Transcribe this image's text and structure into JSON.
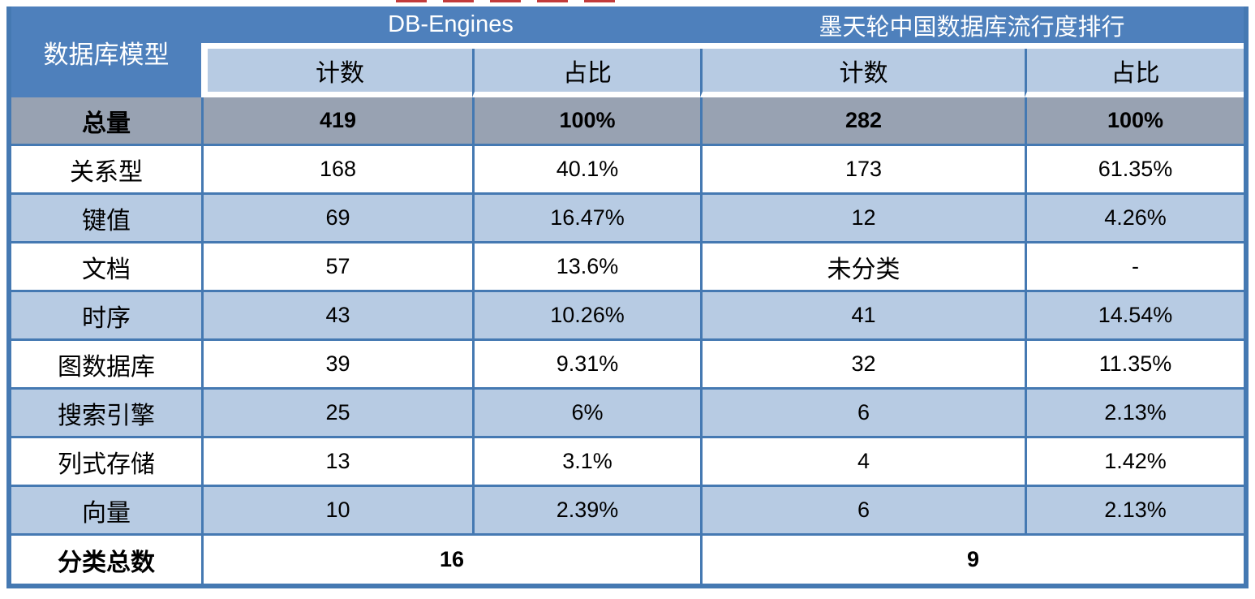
{
  "colors": {
    "header_blue": "#4e80bc",
    "sub_header_blue": "#b7cbe3",
    "total_row_gray": "#98a2b2",
    "border_blue": "#4579b2",
    "row_white": "#ffffff",
    "text_dark": "#000000",
    "text_light": "#ffffff",
    "artifact_red": "#c23b3b"
  },
  "table": {
    "corner_header": "数据库模型",
    "group_headers": [
      {
        "label": "DB-Engines"
      },
      {
        "label": "墨天轮中国数据库流行度排行"
      }
    ],
    "sub_headers": [
      "计数",
      "占比",
      "计数",
      "占比"
    ],
    "rows": [
      {
        "label": "总量",
        "cells": [
          "419",
          "100%",
          "282",
          "100%"
        ]
      },
      {
        "label": "关系型",
        "cells": [
          "168",
          "40.1%",
          "173",
          "61.35%"
        ]
      },
      {
        "label": "键值",
        "cells": [
          "69",
          "16.47%",
          "12",
          "4.26%"
        ]
      },
      {
        "label": "文档",
        "cells": [
          "57",
          "13.6%",
          "未分类",
          "-"
        ]
      },
      {
        "label": "时序",
        "cells": [
          "43",
          "10.26%",
          "41",
          "14.54%"
        ]
      },
      {
        "label": "图数据库",
        "cells": [
          "39",
          "9.31%",
          "32",
          "11.35%"
        ]
      },
      {
        "label": "搜索引擎",
        "cells": [
          "25",
          "6%",
          "6",
          "2.13%"
        ]
      },
      {
        "label": "列式存储",
        "cells": [
          "13",
          "3.1%",
          "4",
          "1.42%"
        ]
      },
      {
        "label": "向量",
        "cells": [
          "10",
          "2.39%",
          "6",
          "2.13%"
        ]
      }
    ],
    "footer": {
      "label": "分类总数",
      "db_engines_total": "16",
      "modb_total": "9"
    }
  }
}
